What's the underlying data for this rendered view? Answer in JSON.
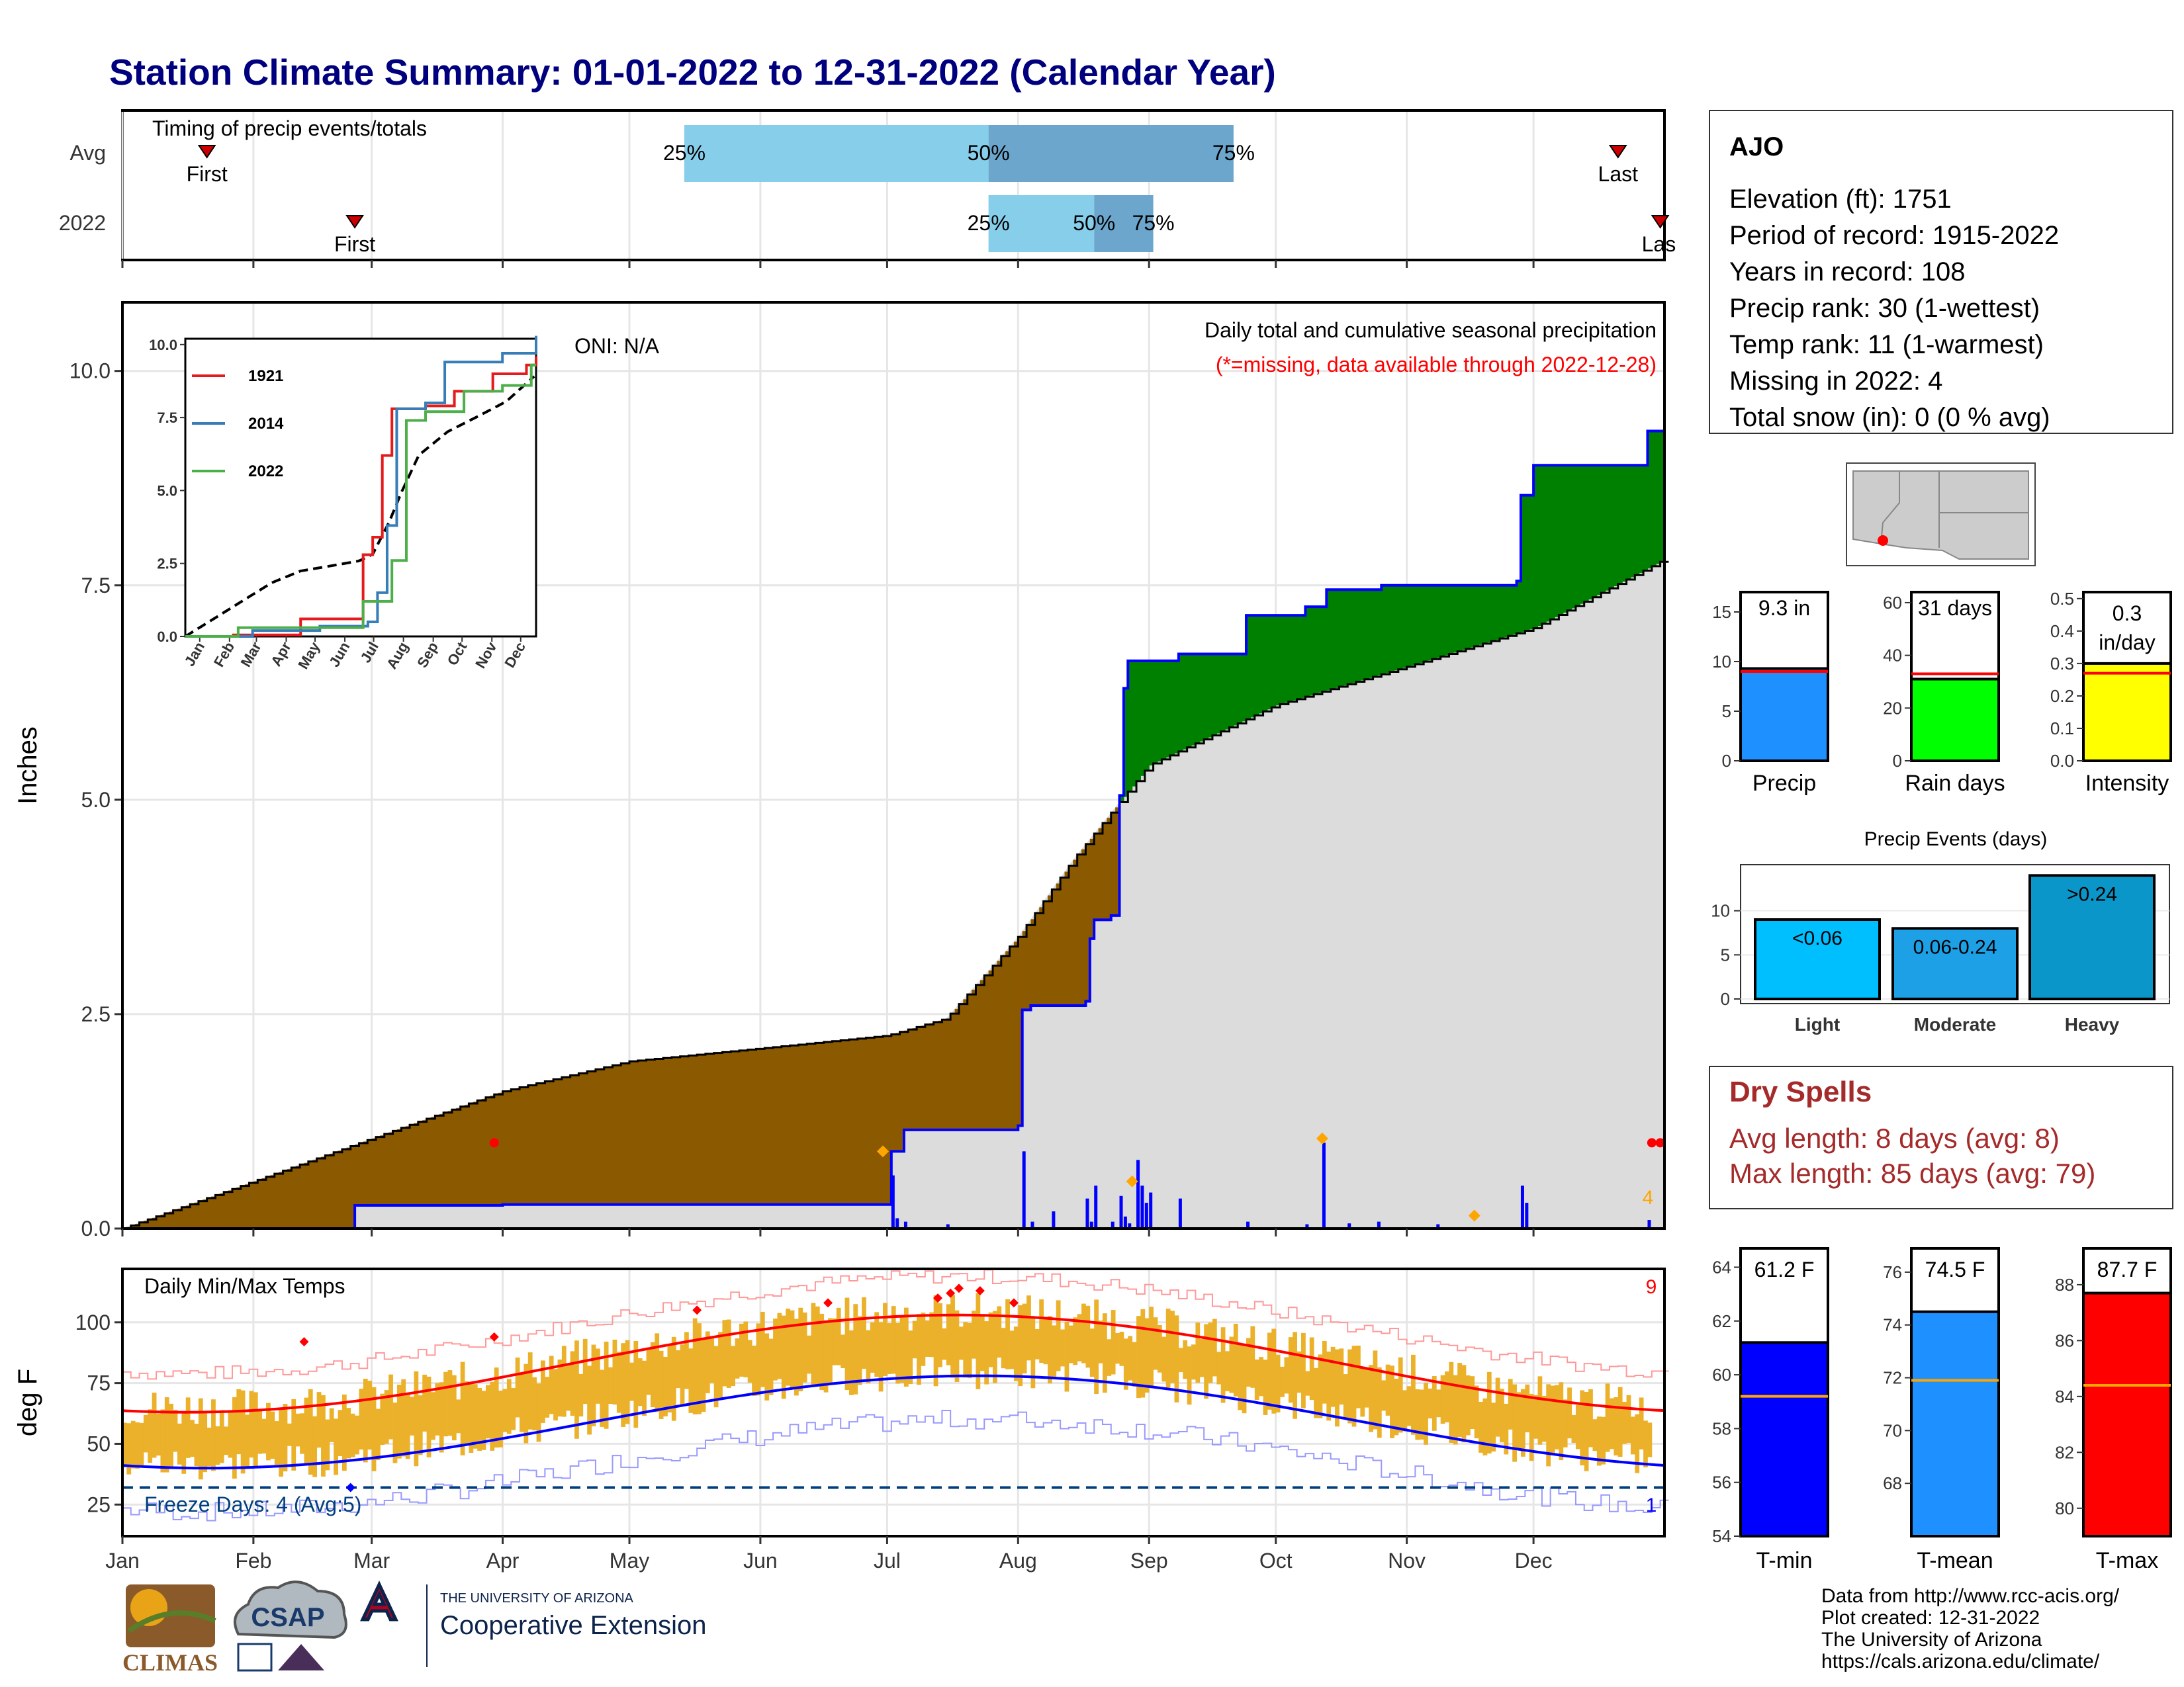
{
  "title": "Station Climate Summary: 01-01-2022 to 12-31-2022 (Calendar Year)",
  "months": [
    "Jan",
    "Feb",
    "Mar",
    "Apr",
    "May",
    "Jun",
    "Jul",
    "Aug",
    "Sep",
    "Oct",
    "Nov",
    "Dec"
  ],
  "timing": {
    "title": "Timing of precip events/totals",
    "rows": [
      "Avg",
      "2022"
    ],
    "first_label": "First",
    "last_label": "Last",
    "last_label_clipped": "Las",
    "avg": {
      "first_doy": 20,
      "p25_doy": 133,
      "p50_doy": 205,
      "p75_doy": 263,
      "last_doy": 354,
      "labels": [
        "25%",
        "50%",
        "75%"
      ]
    },
    "y2022": {
      "first_doy": 55,
      "p25_doy": 205,
      "p50_doy": 230,
      "p75_doy": 244,
      "last_doy": 364,
      "labels": [
        "25%",
        "50%",
        "75%"
      ]
    }
  },
  "precip_panel": {
    "ylabel": "Inches",
    "yticks": [
      "0.0",
      "2.5",
      "5.0",
      "7.5",
      "10.0"
    ],
    "oni": "ONI: N/A",
    "caption": "Daily total and cumulative seasonal precipitation",
    "missing_note": "(*=missing, data available through 2022-12-28)",
    "missing_count": "4",
    "colors": {
      "above": "#008000",
      "below": "#8B5A00",
      "normal_fill": "#DCDCDC",
      "obs_line": "#0000FF",
      "daily_bar": "#0000FF",
      "extreme": "#FFA500",
      "missing": "#FF0000"
    }
  },
  "inset": {
    "legend": [
      "1921",
      "2014",
      "2022"
    ],
    "colors": [
      "#E41A1C",
      "#377EB8",
      "#4DAF4A"
    ],
    "yticks": [
      "0.0",
      "2.5",
      "5.0",
      "7.5",
      "10.0"
    ],
    "months": [
      "Jan",
      "Feb",
      "Mar",
      "Apr",
      "May",
      "Jun",
      "Jul",
      "Aug",
      "Sep",
      "Oct",
      "Nov",
      "Dec"
    ]
  },
  "temp_panel": {
    "title": "Daily Min/Max Temps",
    "ylabel": "deg F",
    "yticks": [
      "25",
      "50",
      "75",
      "100"
    ],
    "freeze_label": "Freeze Days: 4 (Avg:5)",
    "record_high_count": "9",
    "record_low_count": "1",
    "colors": {
      "bar": "#EBB12A",
      "avg_max": "#FF0000",
      "avg_min": "#0000FF",
      "rec_max": "#FF9999",
      "rec_min": "#9999FF",
      "freeze": "#003F7F"
    }
  },
  "info": {
    "station": "AJO",
    "lines": [
      "Elevation (ft): 1751",
      "Period of record: 1915-2022",
      "Years in record: 108",
      "Precip rank: 30 (1-wettest)",
      "Temp rank: 11 (1-warmest)",
      "Missing in 2022: 4",
      "Total snow (in): 0 (0 % avg)"
    ]
  },
  "mini_bars": [
    {
      "label": "Precip",
      "value_text": "9.3 in",
      "value": 9.3,
      "avg": 9.0,
      "ymax": 17,
      "yticks": [
        "0",
        "5",
        "10",
        "15"
      ],
      "color": "#1E90FF"
    },
    {
      "label": "Rain days",
      "value_text": "31 days",
      "value": 31,
      "avg": 33,
      "ymax": 64,
      "yticks": [
        "0",
        "20",
        "40",
        "60"
      ],
      "color": "#00FF00"
    },
    {
      "label": "Intensity",
      "value_text": "0.3 in/day",
      "value_line1": "0.3",
      "value_line2": "in/day",
      "value": 0.3,
      "avg": 0.27,
      "ymax": 0.52,
      "yticks": [
        "0.0",
        "0.1",
        "0.2",
        "0.3",
        "0.4",
        "0.5"
      ],
      "color": "#FFFF00"
    }
  ],
  "precip_events": {
    "title": "Precip Events (days)",
    "yticks": [
      "0",
      "5",
      "10"
    ],
    "categories": [
      "Light",
      "Moderate",
      "Heavy"
    ],
    "labels": [
      "<0.06",
      "0.06-0.24",
      ">0.24"
    ],
    "values": [
      9,
      8,
      14
    ],
    "colors": [
      "#00BFFF",
      "#1EA0E6",
      "#0A96C8"
    ]
  },
  "dry_spells": {
    "title": "Dry Spells",
    "avg_length": "Avg length: 8 days (avg: 8)",
    "max_length": "Max length: 85 days (avg: 79)"
  },
  "temp_bars": [
    {
      "label": "T-min",
      "value_text": "61.2 F",
      "value": 61.2,
      "avg": 59.2,
      "ymin": 54,
      "ymax": 64.7,
      "yticks": [
        "54",
        "56",
        "58",
        "60",
        "62",
        "64"
      ],
      "color": "#0000FF"
    },
    {
      "label": "T-mean",
      "value_text": "74.5 F",
      "value": 74.5,
      "avg": 71.9,
      "ymin": 66,
      "ymax": 76.9,
      "yticks": [
        "68",
        "70",
        "72",
        "74",
        "76"
      ],
      "color": "#1E90FF"
    },
    {
      "label": "T-max",
      "value_text": "87.7 F",
      "value": 87.7,
      "avg": 84.4,
      "ymin": 79,
      "ymax": 89.3,
      "yticks": [
        "80",
        "82",
        "84",
        "86",
        "88"
      ],
      "color": "#FF0000"
    }
  ],
  "credits": [
    "Data from http://www.rcc-acis.org/",
    "Plot created: 12-31-2022",
    "The University of Arizona",
    "https://cals.arizona.edu/climate/"
  ],
  "logos": {
    "climas": "CLIMAS",
    "csap": "CSAP",
    "ua_small": "THE UNIVERSITY OF ARIZONA",
    "ua_big": "Cooperative Extension"
  }
}
